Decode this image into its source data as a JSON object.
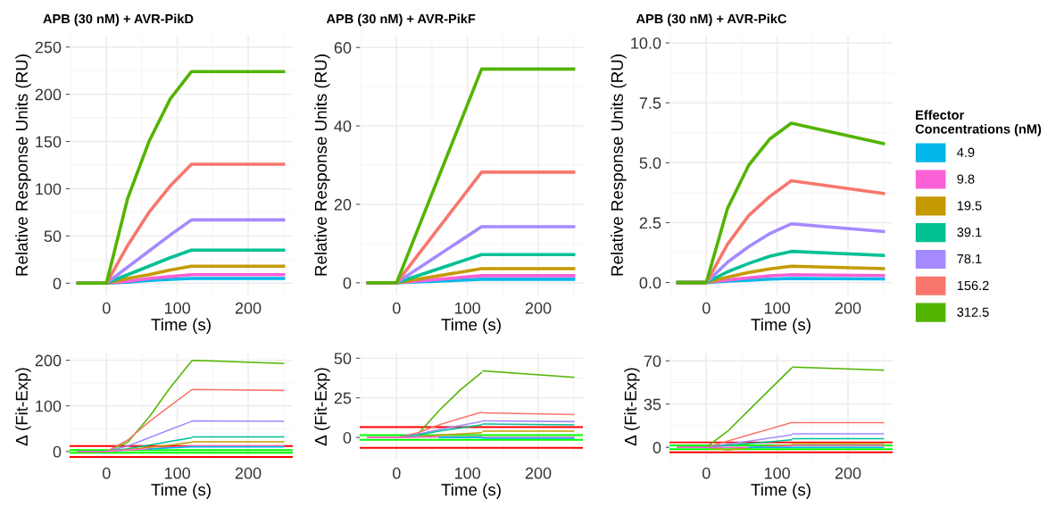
{
  "chart_data": [
    {
      "type": "line",
      "title": "APB (30 nM) + AVR-PikD",
      "xlabel": "Time (s)",
      "ylabel": "Relative Response Units (RU)",
      "legend": "right",
      "legend_title": "Effector Concentrations (nM)",
      "grid": true,
      "xlim": [
        -52,
        263
      ],
      "xticks": [
        0,
        100,
        200
      ],
      "ylim": [
        -12,
        262
      ],
      "yticks": [
        0,
        50,
        100,
        150,
        200,
        250
      ],
      "x": [
        -40,
        0,
        30,
        60,
        90,
        120,
        250
      ],
      "series": [
        {
          "name": "4.9",
          "color": "#00b6eb",
          "values": [
            0,
            0,
            1,
            3,
            4,
            5,
            5
          ]
        },
        {
          "name": "9.8",
          "color": "#fb61d7",
          "values": [
            0,
            0,
            2,
            5,
            7,
            9,
            9
          ]
        },
        {
          "name": "19.5",
          "color": "#c49a00",
          "values": [
            0,
            0,
            5,
            9,
            14,
            18,
            18
          ]
        },
        {
          "name": "39.1",
          "color": "#00c094",
          "values": [
            0,
            0,
            9,
            18,
            27,
            35,
            35
          ]
        },
        {
          "name": "78.1",
          "color": "#a58aff",
          "values": [
            0,
            0,
            17,
            34,
            51,
            67,
            67
          ]
        },
        {
          "name": "156.2",
          "color": "#f8766d",
          "values": [
            0,
            0,
            40,
            75,
            103,
            126,
            126
          ]
        },
        {
          "name": "312.5",
          "color": "#53b400",
          "values": [
            0,
            0,
            90,
            150,
            195,
            224,
            224
          ]
        }
      ]
    },
    {
      "type": "line",
      "title": "APB (30 nM) + AVR-PikF",
      "xlabel": "Time (s)",
      "ylabel": "Relative Response Units (RU)",
      "grid": true,
      "xlim": [
        -52,
        263
      ],
      "xticks": [
        0,
        100,
        200
      ],
      "ylim": [
        -3,
        63
      ],
      "yticks": [
        0,
        20,
        40,
        60
      ],
      "x": [
        -40,
        0,
        120,
        250
      ],
      "series": [
        {
          "name": "4.9",
          "color": "#00b6eb",
          "values": [
            0,
            0,
            0.9,
            0.9
          ]
        },
        {
          "name": "9.8",
          "color": "#fb61d7",
          "values": [
            0,
            0,
            1.8,
            1.8
          ]
        },
        {
          "name": "19.5",
          "color": "#c49a00",
          "values": [
            0,
            0,
            3.6,
            3.6
          ]
        },
        {
          "name": "39.1",
          "color": "#00c094",
          "values": [
            0,
            0,
            7.2,
            7.2
          ]
        },
        {
          "name": "78.1",
          "color": "#a58aff",
          "values": [
            0,
            0,
            14.3,
            14.3
          ]
        },
        {
          "name": "156.2",
          "color": "#f8766d",
          "values": [
            0,
            0,
            28.2,
            28.2
          ]
        },
        {
          "name": "312.5",
          "color": "#53b400",
          "values": [
            0,
            0,
            54.5,
            54.5
          ]
        }
      ]
    },
    {
      "type": "line",
      "title": "APB (30 nM) + AVR-PikC",
      "xlabel": "Time (s)",
      "ylabel": "Relative Response Units (RU)",
      "grid": true,
      "xlim": [
        -52,
        263
      ],
      "xticks": [
        0,
        100,
        200
      ],
      "ylim": [
        -0.5,
        10.3
      ],
      "yticks": [
        {
          "value": 0,
          "label": "0.0"
        },
        2.5,
        {
          "value": 5,
          "label": "5.0"
        },
        7.5,
        {
          "value": 10,
          "label": "10.0"
        }
      ],
      "x": [
        -40,
        0,
        30,
        60,
        90,
        120,
        250
      ],
      "series": [
        {
          "name": "4.9",
          "color": "#00b6eb",
          "values": [
            0,
            0,
            0.06,
            0.1,
            0.14,
            0.17,
            0.15
          ]
        },
        {
          "name": "9.8",
          "color": "#fb61d7",
          "values": [
            0,
            0,
            0.11,
            0.2,
            0.28,
            0.33,
            0.29
          ]
        },
        {
          "name": "19.5",
          "color": "#c49a00",
          "values": [
            0,
            0,
            0.23,
            0.42,
            0.57,
            0.68,
            0.58
          ]
        },
        {
          "name": "39.1",
          "color": "#00c094",
          "values": [
            0,
            0,
            0.45,
            0.8,
            1.1,
            1.3,
            1.13
          ]
        },
        {
          "name": "78.1",
          "color": "#a58aff",
          "values": [
            0,
            0,
            0.85,
            1.5,
            2.05,
            2.45,
            2.13
          ]
        },
        {
          "name": "156.2",
          "color": "#f8766d",
          "values": [
            0,
            0,
            1.6,
            2.8,
            3.6,
            4.25,
            3.72
          ]
        },
        {
          "name": "312.5",
          "color": "#53b400",
          "values": [
            0,
            0,
            3.1,
            4.9,
            6.0,
            6.65,
            5.8
          ]
        }
      ]
    },
    {
      "type": "line",
      "xlabel": "Time (s)",
      "ylabel": "Δ (Fit-Exp)",
      "grid": true,
      "xlim": [
        -52,
        263
      ],
      "xticks": [
        0,
        100,
        200
      ],
      "ylim": [
        -18,
        215
      ],
      "yticks": [
        0,
        100,
        200
      ],
      "x": [
        -40,
        0,
        30,
        60,
        90,
        120,
        121,
        122,
        250
      ],
      "series": [
        {
          "name": "4.9",
          "color": "#00b6eb",
          "values": [
            null,
            null,
            null,
            5,
            8,
            10,
            null,
            10,
            10
          ]
        },
        {
          "name": "9.8",
          "color": "#fb61d7",
          "values": [
            0,
            0,
            3,
            6,
            9,
            12,
            null,
            12,
            12
          ]
        },
        {
          "name": "19.5",
          "color": "#c49a00",
          "values": [
            0,
            0,
            4,
            9,
            14,
            20,
            null,
            21,
            21
          ]
        },
        {
          "name": "39.1",
          "color": "#00c094",
          "values": [
            0,
            0,
            6,
            14,
            22,
            30,
            null,
            32,
            32
          ]
        },
        {
          "name": "78.1",
          "color": "#a58aff",
          "values": [
            0,
            0,
            12,
            30,
            48,
            66,
            null,
            67,
            66
          ]
        },
        {
          "name": "156.2",
          "color": "#f8766d",
          "values": [
            0,
            0,
            25,
            65,
            100,
            135,
            null,
            136,
            134
          ]
        },
        {
          "name": "312.5",
          "color": "#53b400",
          "values": [
            0,
            0,
            20,
            75,
            140,
            198,
            null,
            200,
            193
          ]
        }
      ],
      "ref_lines": [
        {
          "axis": "y",
          "value": 12,
          "color": "#ff0000"
        },
        {
          "axis": "y",
          "value": -12,
          "color": "#ff0000"
        },
        {
          "axis": "y",
          "value": 3,
          "color": "#00ff00"
        },
        {
          "axis": "y",
          "value": -3,
          "color": "#00ff00"
        }
      ]
    },
    {
      "type": "line",
      "xlabel": "Time (s)",
      "ylabel": "Δ (Fit-Exp)",
      "grid": true,
      "xlim": [
        -52,
        263
      ],
      "xticks": [
        0,
        100,
        200
      ],
      "ylim": [
        -14,
        53
      ],
      "yticks": [
        0,
        25,
        50
      ],
      "x": [
        -40,
        0,
        30,
        60,
        90,
        120,
        121,
        122,
        250
      ],
      "series": [
        {
          "name": "4.9",
          "color": "#00b6eb",
          "values": [
            null,
            null,
            null,
            0,
            0,
            0,
            null,
            -0.5,
            -0.5
          ]
        },
        {
          "name": "9.8",
          "color": "#fb61d7",
          "values": [
            0,
            0,
            0.2,
            0.3,
            0.4,
            0.5,
            null,
            0,
            0
          ]
        },
        {
          "name": "19.5",
          "color": "#c49a00",
          "values": [
            0,
            0,
            0.5,
            1.5,
            2.2,
            3,
            null,
            4,
            4
          ]
        },
        {
          "name": "39.1",
          "color": "#00c094",
          "values": [
            0,
            0,
            1.5,
            4,
            6,
            8,
            null,
            8.5,
            8
          ]
        },
        {
          "name": "78.1",
          "color": "#a58aff",
          "values": [
            0,
            0,
            2,
            5,
            7.5,
            10,
            null,
            10.5,
            10
          ]
        },
        {
          "name": "156.2",
          "color": "#f8766d",
          "values": [
            0,
            0,
            3,
            8,
            12,
            16,
            null,
            15.5,
            14.5
          ]
        },
        {
          "name": "312.5",
          "color": "#53b400",
          "values": [
            0,
            0,
            2,
            17,
            30,
            41,
            null,
            42,
            38
          ]
        }
      ],
      "ref_lines": [
        {
          "axis": "y",
          "value": 6.5,
          "color": "#ff0000"
        },
        {
          "axis": "y",
          "value": -6.5,
          "color": "#ff0000"
        },
        {
          "axis": "y",
          "value": 1.5,
          "color": "#00ff00"
        },
        {
          "axis": "y",
          "value": -1.5,
          "color": "#00ff00"
        }
      ]
    },
    {
      "type": "line",
      "xlabel": "Time (s)",
      "ylabel": "Δ (Fit-Exp)",
      "grid": true,
      "xlim": [
        -52,
        263
      ],
      "xticks": [
        0,
        100,
        200
      ],
      "ylim": [
        -10,
        76
      ],
      "yticks": [
        0,
        35,
        70
      ],
      "x": [
        -40,
        0,
        30,
        60,
        90,
        120,
        121,
        122,
        250
      ],
      "series": [
        {
          "name": "4.9",
          "color": "#00b6eb",
          "values": [
            null,
            null,
            null,
            0,
            0,
            0,
            null,
            0,
            0
          ]
        },
        {
          "name": "9.8",
          "color": "#fb61d7",
          "values": [
            0,
            0,
            0,
            0,
            0.5,
            1,
            null,
            1.5,
            1.5
          ]
        },
        {
          "name": "19.5",
          "color": "#c49a00",
          "values": [
            0,
            0,
            -2,
            -0.5,
            1,
            2,
            null,
            3,
            3
          ]
        },
        {
          "name": "39.1",
          "color": "#00c094",
          "values": [
            0,
            0,
            1.5,
            3,
            4.5,
            6,
            null,
            7,
            7
          ]
        },
        {
          "name": "78.1",
          "color": "#a58aff",
          "values": [
            0,
            0,
            2.5,
            5,
            7.5,
            10,
            null,
            11,
            11
          ]
        },
        {
          "name": "156.2",
          "color": "#f8766d",
          "values": [
            0,
            0,
            5,
            10,
            15,
            20,
            null,
            20,
            20
          ]
        },
        {
          "name": "312.5",
          "color": "#53b400",
          "values": [
            0,
            0,
            13,
            30,
            47,
            64,
            null,
            65,
            62.5
          ]
        }
      ],
      "ref_lines": [
        {
          "axis": "y",
          "value": 4,
          "color": "#ff0000"
        },
        {
          "axis": "y",
          "value": -4,
          "color": "#ff0000"
        },
        {
          "axis": "y",
          "value": 1.5,
          "color": "#00ff00"
        },
        {
          "axis": "y",
          "value": -1.5,
          "color": "#00ff00"
        }
      ]
    }
  ]
}
